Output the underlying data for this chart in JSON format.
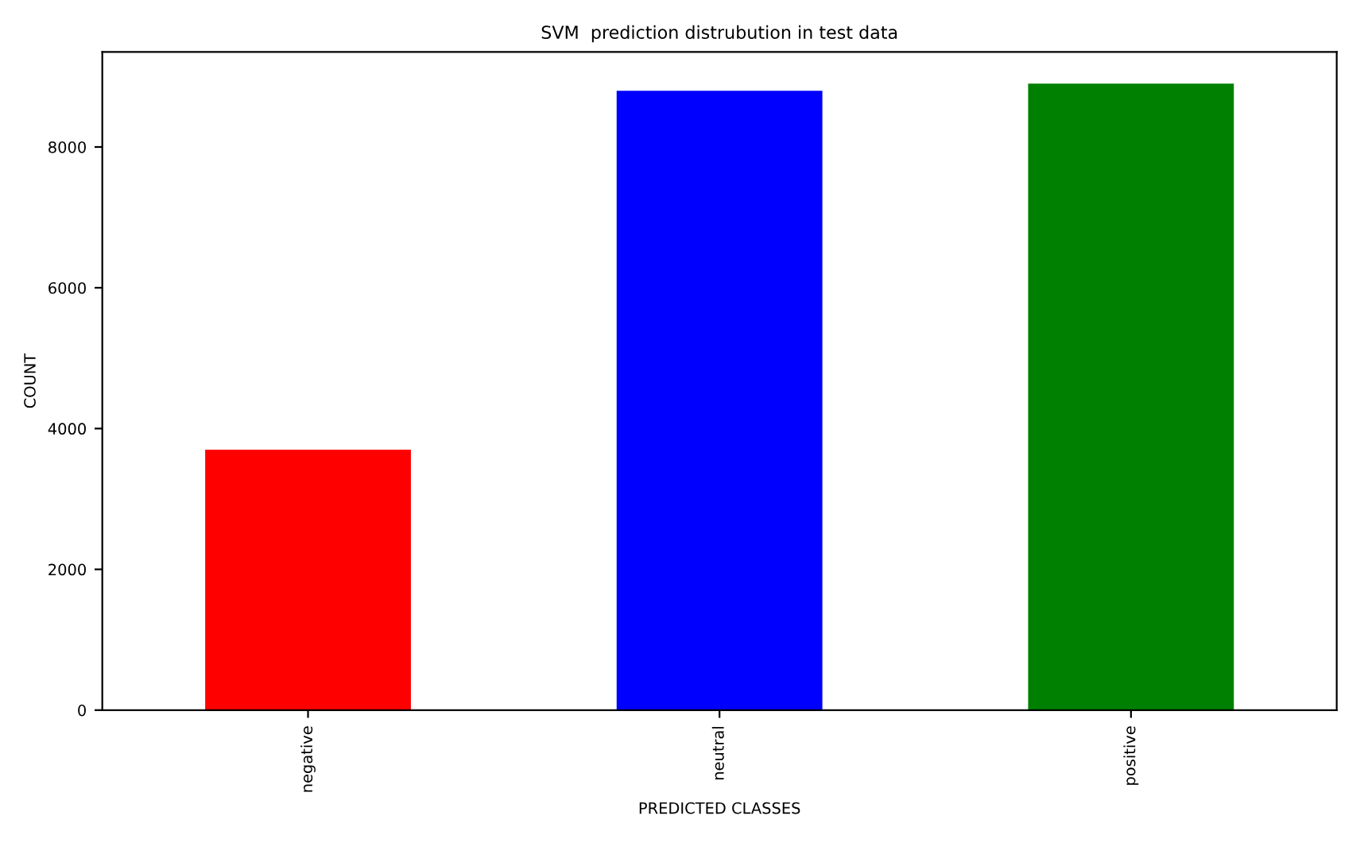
{
  "chart_data": {
    "type": "bar",
    "title": "SVM  prediction distrubution in test data",
    "xlabel": "PREDICTED CLASSES",
    "ylabel": "COUNT",
    "categories": [
      "negative",
      "neutral",
      "positive"
    ],
    "values": [
      3700,
      8800,
      8900
    ],
    "colors": [
      "#ff0000",
      "#0000ff",
      "#008000"
    ],
    "ylim": [
      0,
      9350
    ],
    "yticks": [
      0,
      2000,
      4000,
      6000,
      8000
    ],
    "grid": false,
    "legend": false
  }
}
